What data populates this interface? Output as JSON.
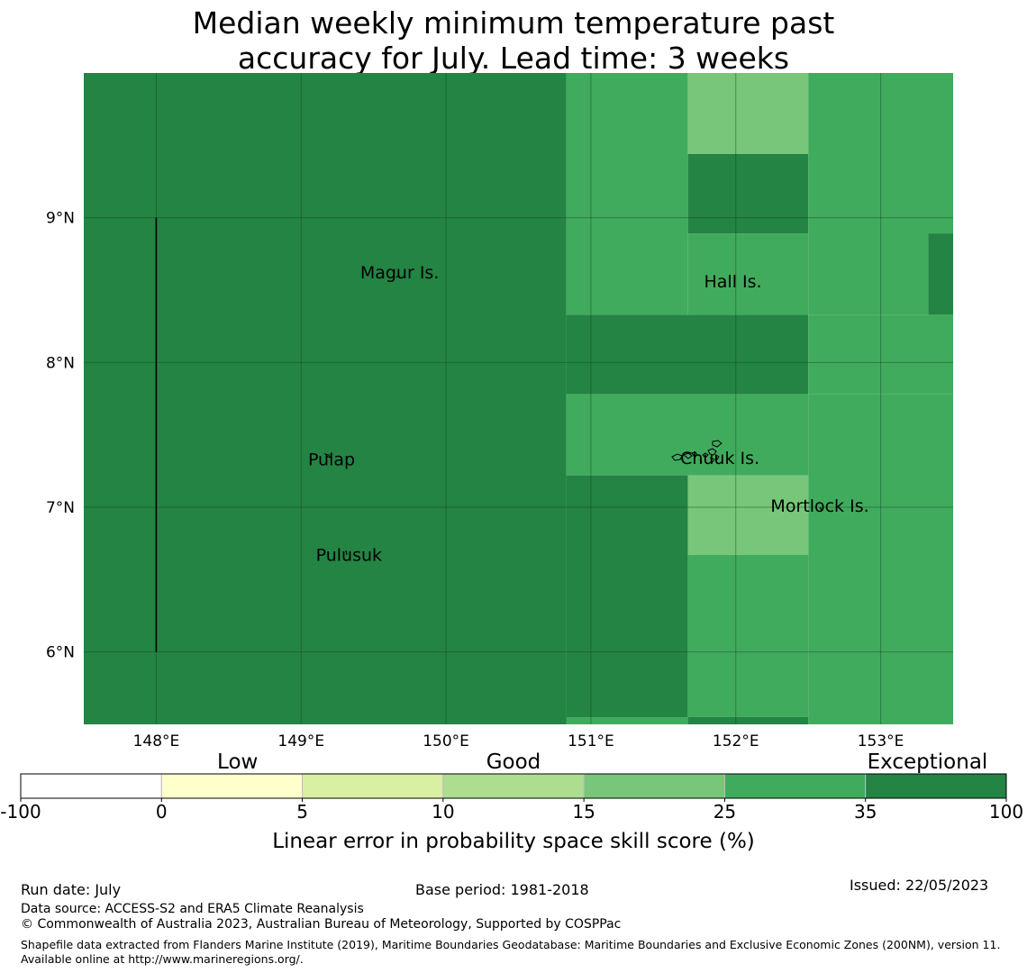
{
  "title": {
    "line1": "Median weekly minimum temperature past",
    "line2": "accuracy for July. Lead time: 3 weeks"
  },
  "map": {
    "lon_range": [
      147.5,
      153.5
    ],
    "lat_range": [
      5.5,
      10.0
    ],
    "lon_ticks": [
      {
        "value": 148,
        "label": "148°E"
      },
      {
        "value": 149,
        "label": "149°E"
      },
      {
        "value": 150,
        "label": "150°E"
      },
      {
        "value": 151,
        "label": "151°E"
      },
      {
        "value": 152,
        "label": "152°E"
      },
      {
        "value": 153,
        "label": "153°E"
      }
    ],
    "lat_ticks": [
      {
        "value": 9,
        "label": "9°N"
      },
      {
        "value": 8,
        "label": "8°N"
      },
      {
        "value": 7,
        "label": "7°N"
      },
      {
        "value": 6,
        "label": "6°N"
      }
    ],
    "cells": [
      {
        "lon": [
          147.5,
          150.83
        ],
        "lat": [
          5.5,
          10.0
        ],
        "score": 40
      },
      {
        "lon": [
          150.83,
          151.67
        ],
        "lat": [
          8.33,
          10.0
        ],
        "score": 30
      },
      {
        "lon": [
          151.67,
          152.5
        ],
        "lat": [
          9.44,
          10.0
        ],
        "score": 20
      },
      {
        "lon": [
          151.67,
          152.5
        ],
        "lat": [
          8.89,
          9.44
        ],
        "score": 40
      },
      {
        "lon": [
          151.67,
          152.5
        ],
        "lat": [
          8.33,
          8.89
        ],
        "score": 30
      },
      {
        "lon": [
          152.5,
          153.5
        ],
        "lat": [
          8.33,
          10.0
        ],
        "score": 30
      },
      {
        "lon": [
          153.33,
          153.5
        ],
        "lat": [
          8.33,
          8.89
        ],
        "score": 40
      },
      {
        "lon": [
          150.83,
          152.5
        ],
        "lat": [
          7.78,
          8.33
        ],
        "score": 40
      },
      {
        "lon": [
          152.5,
          153.5
        ],
        "lat": [
          7.78,
          8.33
        ],
        "score": 30
      },
      {
        "lon": [
          150.83,
          152.5
        ],
        "lat": [
          7.22,
          7.78
        ],
        "score": 30
      },
      {
        "lon": [
          152.5,
          153.5
        ],
        "lat": [
          5.5,
          7.78
        ],
        "score": 30
      },
      {
        "lon": [
          150.83,
          151.67
        ],
        "lat": [
          5.5,
          7.22
        ],
        "score": 40
      },
      {
        "lon": [
          151.67,
          152.5
        ],
        "lat": [
          6.67,
          7.22
        ],
        "score": 20
      },
      {
        "lon": [
          151.67,
          152.5
        ],
        "lat": [
          5.55,
          6.67
        ],
        "score": 30
      },
      {
        "lon": [
          150.83,
          151.67
        ],
        "lat": [
          5.5,
          5.55
        ],
        "score": 30
      },
      {
        "lon": [
          151.67,
          152.5
        ],
        "lat": [
          5.5,
          5.55
        ],
        "score": 40
      }
    ],
    "boundary_line": {
      "lon": 148.0,
      "lat": [
        6.0,
        9.0
      ]
    },
    "places": [
      {
        "name": "Magur Is.",
        "lon": 149.68,
        "lat": 8.58
      },
      {
        "name": "Hall Is.",
        "lon": 151.98,
        "lat": 8.52
      },
      {
        "name": "Pulap",
        "lon": 149.21,
        "lat": 7.29
      },
      {
        "name": "Chuuk Is.",
        "lon": 151.89,
        "lat": 7.3
      },
      {
        "name": "Mortlock Is.",
        "lon": 152.58,
        "lat": 6.97
      },
      {
        "name": "Pulusuk",
        "lon": 149.33,
        "lat": 6.63
      }
    ]
  },
  "colorbar": {
    "boundaries": [
      "-100",
      "0",
      "5",
      "10",
      "15",
      "25",
      "35",
      "100"
    ],
    "colors": [
      "#ffffff",
      "#ffffcc",
      "#d9f0a3",
      "#addd8e",
      "#78c679",
      "#41ab5d",
      "#238443"
    ],
    "categories": [
      {
        "label": "Low",
        "position": 0.22
      },
      {
        "label": "Good",
        "position": 0.5
      },
      {
        "label": "Exceptional",
        "position": 0.92
      }
    ],
    "label": "Linear error in probability space skill score (%)"
  },
  "footer": {
    "run_date": "Run date: July",
    "base_period": "Base period: 1981-2018",
    "issued": "Issued: 22/05/2023",
    "data_source": "Data source: ACCESS-S2 and ERA5 Climate Reanalysis",
    "copyright": "© Commonwealth of Australia 2023, Australian Bureau of Meteorology, Supported by COSPPac",
    "shapefile": "Shapefile data extracted from Flanders Marine Institute (2019), Maritime Boundaries Geodatabase: Maritime Boundaries and Exclusive Economic Zones (200NM), version 11. Available online at http://www.marineregions.org/."
  }
}
